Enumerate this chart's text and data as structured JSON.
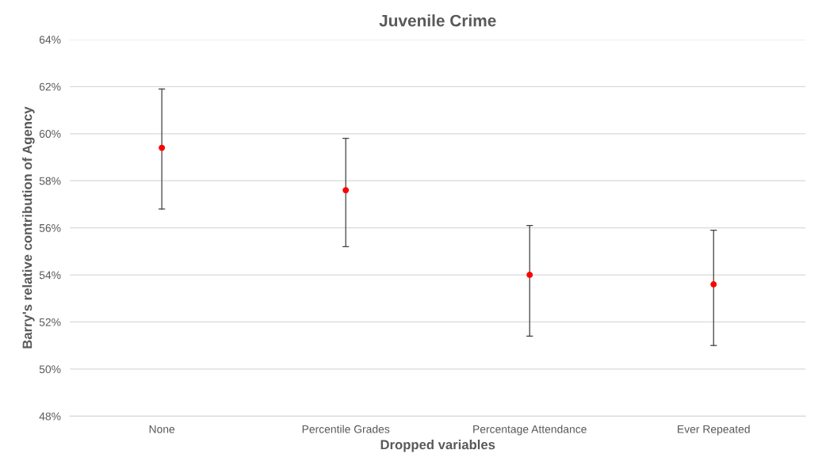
{
  "chart_data": {
    "type": "scatter",
    "title": "Juvenile Crime",
    "xlabel": "Dropped variables",
    "ylabel": "Barry's relative contribution of Agency",
    "categories": [
      "None",
      "Percentile Grades",
      "Percentage Attendance",
      "Ever Repeated"
    ],
    "series": [
      {
        "color": "#ff0000",
        "values": [
          59.4,
          57.6,
          54.0,
          53.6
        ],
        "errors": [
          [
            56.8,
            61.9
          ],
          [
            55.2,
            59.8
          ],
          [
            51.4,
            56.1
          ],
          [
            51.0,
            55.9
          ]
        ]
      }
    ],
    "ylim": [
      48,
      64
    ],
    "yticks": [
      {
        "value": 48,
        "label": "48%"
      },
      {
        "value": 50,
        "label": "50%"
      },
      {
        "value": 52,
        "label": "52%"
      },
      {
        "value": 54,
        "label": "54%"
      },
      {
        "value": 56,
        "label": "56%"
      },
      {
        "value": 58,
        "label": "58%"
      },
      {
        "value": 60,
        "label": "60%"
      },
      {
        "value": 62,
        "label": "62%"
      },
      {
        "value": 64,
        "label": "64%"
      }
    ],
    "grid": "y",
    "marker": "circle"
  }
}
